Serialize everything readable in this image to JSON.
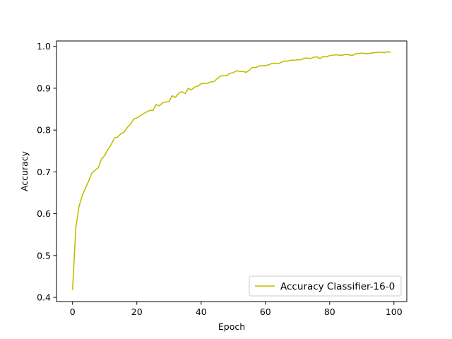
{
  "chart_data": {
    "type": "line",
    "title": "",
    "xlabel": "Epoch",
    "ylabel": "Accuracy",
    "xlim": [
      -5,
      104
    ],
    "ylim": [
      0.39,
      1.013
    ],
    "xticks": [
      0,
      20,
      40,
      60,
      80,
      100
    ],
    "yticks": [
      0.4,
      0.5,
      0.6,
      0.7,
      0.8,
      0.9,
      1.0
    ],
    "xtick_labels": [
      "0",
      "20",
      "40",
      "60",
      "80",
      "100"
    ],
    "ytick_labels": [
      "0.4",
      "0.5",
      "0.6",
      "0.7",
      "0.8",
      "0.9",
      "1.0"
    ],
    "grid": false,
    "legend_position": "lower right",
    "series": [
      {
        "name": "Accuracy Classifier-16-0",
        "color": "#bfbf00",
        "x": [
          0,
          1,
          2,
          3,
          4,
          5,
          6,
          7,
          8,
          9,
          10,
          11,
          12,
          13,
          14,
          15,
          16,
          17,
          18,
          19,
          20,
          21,
          22,
          23,
          24,
          25,
          26,
          27,
          28,
          29,
          30,
          31,
          32,
          33,
          34,
          35,
          36,
          37,
          38,
          39,
          40,
          41,
          42,
          43,
          44,
          45,
          46,
          47,
          48,
          49,
          50,
          51,
          52,
          53,
          54,
          55,
          56,
          57,
          58,
          59,
          60,
          61,
          62,
          63,
          64,
          65,
          66,
          67,
          68,
          69,
          70,
          71,
          72,
          73,
          74,
          75,
          76,
          77,
          78,
          79,
          80,
          81,
          82,
          83,
          84,
          85,
          86,
          87,
          88,
          89,
          90,
          91,
          92,
          93,
          94,
          95,
          96,
          97,
          98,
          99
        ],
        "y": [
          0.418,
          0.565,
          0.617,
          0.643,
          0.661,
          0.678,
          0.697,
          0.704,
          0.71,
          0.731,
          0.739,
          0.754,
          0.765,
          0.781,
          0.783,
          0.791,
          0.795,
          0.806,
          0.814,
          0.826,
          0.829,
          0.834,
          0.839,
          0.843,
          0.847,
          0.847,
          0.861,
          0.858,
          0.865,
          0.867,
          0.868,
          0.882,
          0.878,
          0.888,
          0.892,
          0.887,
          0.9,
          0.896,
          0.903,
          0.905,
          0.911,
          0.912,
          0.912,
          0.915,
          0.916,
          0.923,
          0.929,
          0.93,
          0.93,
          0.936,
          0.937,
          0.942,
          0.94,
          0.94,
          0.938,
          0.943,
          0.95,
          0.949,
          0.953,
          0.954,
          0.954,
          0.956,
          0.959,
          0.96,
          0.959,
          0.962,
          0.965,
          0.965,
          0.967,
          0.967,
          0.968,
          0.968,
          0.972,
          0.972,
          0.971,
          0.974,
          0.975,
          0.971,
          0.976,
          0.975,
          0.978,
          0.979,
          0.98,
          0.979,
          0.979,
          0.981,
          0.98,
          0.978,
          0.982,
          0.983,
          0.984,
          0.983,
          0.983,
          0.984,
          0.985,
          0.986,
          0.986,
          0.985,
          0.987,
          0.986
        ]
      }
    ]
  }
}
